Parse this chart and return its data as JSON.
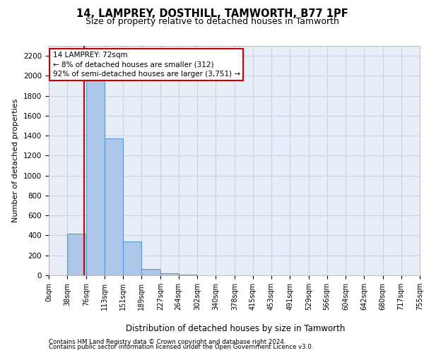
{
  "title1": "14, LAMPREY, DOSTHILL, TAMWORTH, B77 1PF",
  "title2": "Size of property relative to detached houses in Tamworth",
  "xlabel": "Distribution of detached houses by size in Tamworth",
  "ylabel": "Number of detached properties",
  "footer1": "Contains HM Land Registry data © Crown copyright and database right 2024.",
  "footer2": "Contains public sector information licensed under the Open Government Licence v3.0.",
  "annotation_title": "14 LAMPREY: 72sqm",
  "annotation_line1": "← 8% of detached houses are smaller (312)",
  "annotation_line2": "92% of semi-detached houses are larger (3,751) →",
  "property_size": 72,
  "bin_edges": [
    0,
    38,
    76,
    113,
    151,
    189,
    227,
    264,
    302,
    340,
    378,
    415,
    453,
    491,
    529,
    566,
    604,
    642,
    680,
    717,
    755
  ],
  "bar_heights": [
    0,
    420,
    2100,
    1370,
    340,
    65,
    20,
    5,
    0,
    0,
    0,
    0,
    0,
    0,
    0,
    0,
    0,
    0,
    0,
    0
  ],
  "bar_color": "#aec6e8",
  "bar_edge_color": "#5b9bd5",
  "line_color": "#cc0000",
  "grid_color": "#c8d4e8",
  "background_color": "#e8eef8",
  "ylim": [
    0,
    2300
  ],
  "yticks": [
    0,
    200,
    400,
    600,
    800,
    1000,
    1200,
    1400,
    1600,
    1800,
    2000,
    2200
  ],
  "annotation_box_color": "#ffffff",
  "annotation_box_edge": "#cc0000",
  "fig_width": 6.0,
  "fig_height": 5.0,
  "dpi": 100
}
